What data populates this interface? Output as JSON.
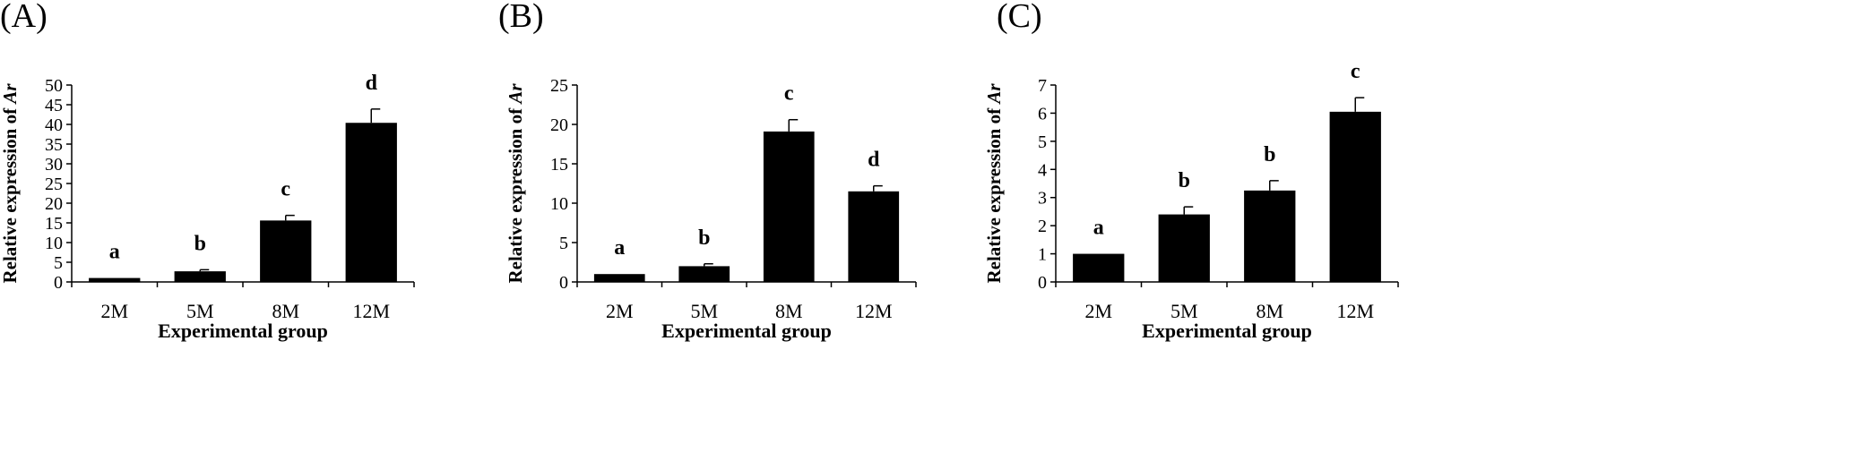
{
  "chart_data": [
    {
      "type": "bar",
      "panel_label": "(A)",
      "categories": [
        "2M",
        "5M",
        "8M",
        "12M"
      ],
      "values": [
        1.0,
        2.7,
        15.6,
        40.4
      ],
      "errors": [
        0.0,
        0.4,
        1.3,
        3.5
      ],
      "letters": [
        "a",
        "b",
        "c",
        "d"
      ],
      "ylim": [
        0,
        50
      ],
      "yticks": [
        0,
        5,
        10,
        15,
        20,
        25,
        30,
        35,
        40,
        45,
        50
      ],
      "xlabel": "Experimental group",
      "ylabel_prefix": "Relative expression of ",
      "ylabel_gene": "Ar"
    },
    {
      "type": "bar",
      "panel_label": "(B)",
      "categories": [
        "2M",
        "5M",
        "8M",
        "12M"
      ],
      "values": [
        1.0,
        2.0,
        19.1,
        11.5
      ],
      "errors": [
        0.0,
        0.3,
        1.5,
        0.7
      ],
      "letters": [
        "a",
        "b",
        "c",
        "d"
      ],
      "ylim": [
        0,
        25
      ],
      "yticks": [
        0,
        5,
        10,
        15,
        20,
        25
      ],
      "xlabel": "Experimental group",
      "ylabel_prefix": "Relative expression of ",
      "ylabel_gene": "Ar"
    },
    {
      "type": "bar",
      "panel_label": "(C)",
      "categories": [
        "2M",
        "5M",
        "8M",
        "12M"
      ],
      "values": [
        1.0,
        2.4,
        3.25,
        6.05
      ],
      "errors": [
        0.0,
        0.27,
        0.35,
        0.5
      ],
      "letters": [
        "a",
        "b",
        "b",
        "c"
      ],
      "ylim": [
        0,
        7
      ],
      "yticks": [
        0,
        1,
        2,
        3,
        4,
        5,
        6,
        7
      ],
      "xlabel": "Experimental group",
      "ylabel_prefix": "Relative expression of ",
      "ylabel_gene": "Ar"
    }
  ]
}
